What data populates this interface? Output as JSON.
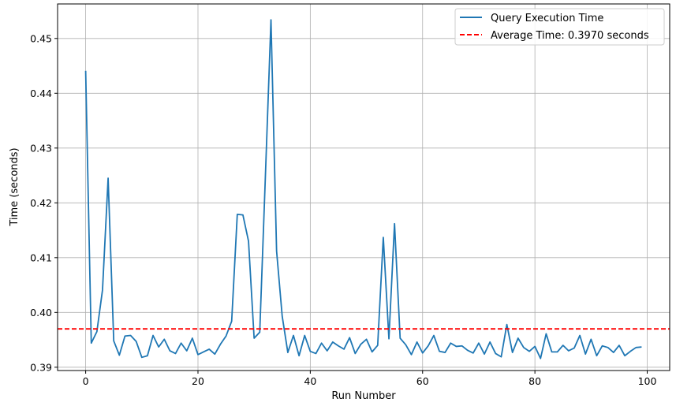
{
  "chart_data": {
    "type": "line",
    "title": "",
    "xlabel": "Run Number",
    "ylabel": "Time (seconds)",
    "xlim": [
      -5,
      104
    ],
    "ylim": [
      0.3894,
      0.4563
    ],
    "grid": true,
    "legend_position": "top-right",
    "x_ticks": [
      0,
      20,
      40,
      60,
      80,
      100
    ],
    "y_ticks": [
      0.39,
      0.4,
      0.41,
      0.42,
      0.43,
      0.44,
      0.45
    ],
    "x_tick_labels": [
      "0",
      "20",
      "40",
      "60",
      "80",
      "100"
    ],
    "y_tick_labels": [
      "0.39",
      "0.40",
      "0.41",
      "0.42",
      "0.43",
      "0.44",
      "0.45"
    ],
    "series": [
      {
        "name": "Query Execution Time",
        "color": "#1f77b4",
        "style": "solid",
        "x": [
          0,
          1,
          2,
          3,
          4,
          5,
          6,
          7,
          8,
          9,
          10,
          11,
          12,
          13,
          14,
          15,
          16,
          17,
          18,
          19,
          20,
          21,
          22,
          23,
          24,
          25,
          26,
          27,
          28,
          29,
          30,
          31,
          32,
          33,
          34,
          35,
          36,
          37,
          38,
          39,
          40,
          41,
          42,
          43,
          44,
          45,
          46,
          47,
          48,
          49,
          50,
          51,
          52,
          53,
          54,
          55,
          56,
          57,
          58,
          59,
          60,
          61,
          62,
          63,
          64,
          65,
          66,
          67,
          68,
          69,
          70,
          71,
          72,
          73,
          74,
          75,
          76,
          77,
          78,
          79,
          80,
          81,
          82,
          83,
          84,
          85,
          86,
          87,
          88,
          89,
          90,
          91,
          92,
          93,
          94,
          95,
          96,
          97,
          98,
          99
        ],
        "values": [
          0.4441,
          0.3944,
          0.3965,
          0.4041,
          0.4245,
          0.3948,
          0.3922,
          0.3957,
          0.3958,
          0.3947,
          0.3918,
          0.3921,
          0.3958,
          0.3937,
          0.3951,
          0.393,
          0.3925,
          0.3944,
          0.393,
          0.3953,
          0.3923,
          0.3928,
          0.3933,
          0.3924,
          0.3942,
          0.3957,
          0.3984,
          0.4179,
          0.4178,
          0.413,
          0.3953,
          0.3964,
          0.4247,
          0.4534,
          0.4112,
          0.3993,
          0.3927,
          0.3958,
          0.3921,
          0.3958,
          0.3929,
          0.3925,
          0.3944,
          0.393,
          0.3946,
          0.3939,
          0.3933,
          0.3954,
          0.3925,
          0.3942,
          0.3951,
          0.3928,
          0.394,
          0.4137,
          0.3952,
          0.4162,
          0.3953,
          0.3941,
          0.3923,
          0.3946,
          0.3926,
          0.3939,
          0.3958,
          0.3929,
          0.3927,
          0.3944,
          0.3938,
          0.3939,
          0.3931,
          0.3926,
          0.3944,
          0.3924,
          0.3946,
          0.3925,
          0.3919,
          0.3978,
          0.3927,
          0.3953,
          0.3936,
          0.3929,
          0.3938,
          0.3916,
          0.3961,
          0.3928,
          0.3928,
          0.394,
          0.393,
          0.3935,
          0.3958,
          0.3924,
          0.3951,
          0.3921,
          0.3939,
          0.3936,
          0.3927,
          0.394,
          0.3921,
          0.3929,
          0.3936,
          0.3937
        ]
      },
      {
        "name": "Average Time: 0.3970 seconds",
        "color": "#ff0000",
        "style": "dashed",
        "constant": 0.397
      }
    ]
  }
}
